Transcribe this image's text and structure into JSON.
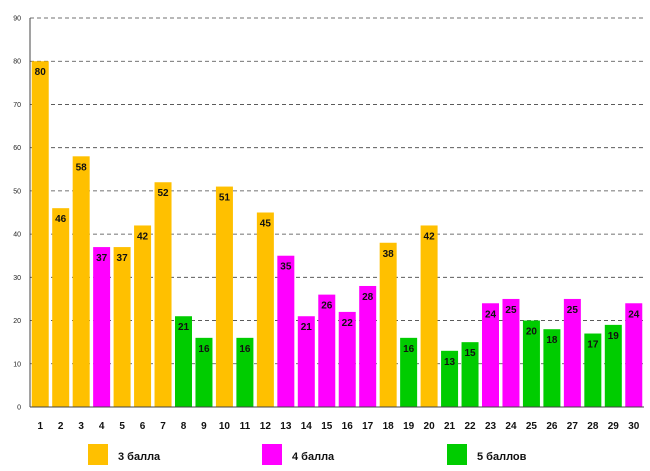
{
  "chart_data": {
    "type": "bar",
    "ylim": [
      0,
      90
    ],
    "yticks": [
      0,
      10,
      20,
      30,
      40,
      50,
      60,
      70,
      80,
      90
    ],
    "grid": true,
    "categories": [
      "1",
      "2",
      "3",
      "4",
      "5",
      "6",
      "7",
      "8",
      "9",
      "10",
      "11",
      "12",
      "13",
      "14",
      "15",
      "16",
      "17",
      "18",
      "19",
      "20",
      "21",
      "22",
      "23",
      "24",
      "25",
      "26",
      "27",
      "28",
      "29",
      "30"
    ],
    "values": [
      80,
      46,
      58,
      37,
      37,
      42,
      52,
      21,
      16,
      51,
      16,
      45,
      35,
      21,
      26,
      22,
      28,
      38,
      16,
      42,
      13,
      15,
      24,
      25,
      20,
      18,
      25,
      17,
      19,
      24
    ],
    "groups": [
      0,
      0,
      0,
      1,
      0,
      0,
      0,
      2,
      2,
      0,
      2,
      0,
      1,
      1,
      1,
      1,
      1,
      0,
      2,
      0,
      2,
      2,
      1,
      1,
      2,
      2,
      1,
      2,
      2,
      1
    ],
    "series": [
      {
        "name": "3 балла",
        "color": "#FFC000"
      },
      {
        "name": "4 балла",
        "color": "#FF00FF"
      },
      {
        "name": "5 баллов",
        "color": "#00CC00"
      }
    ],
    "legend_position": "bottom"
  }
}
